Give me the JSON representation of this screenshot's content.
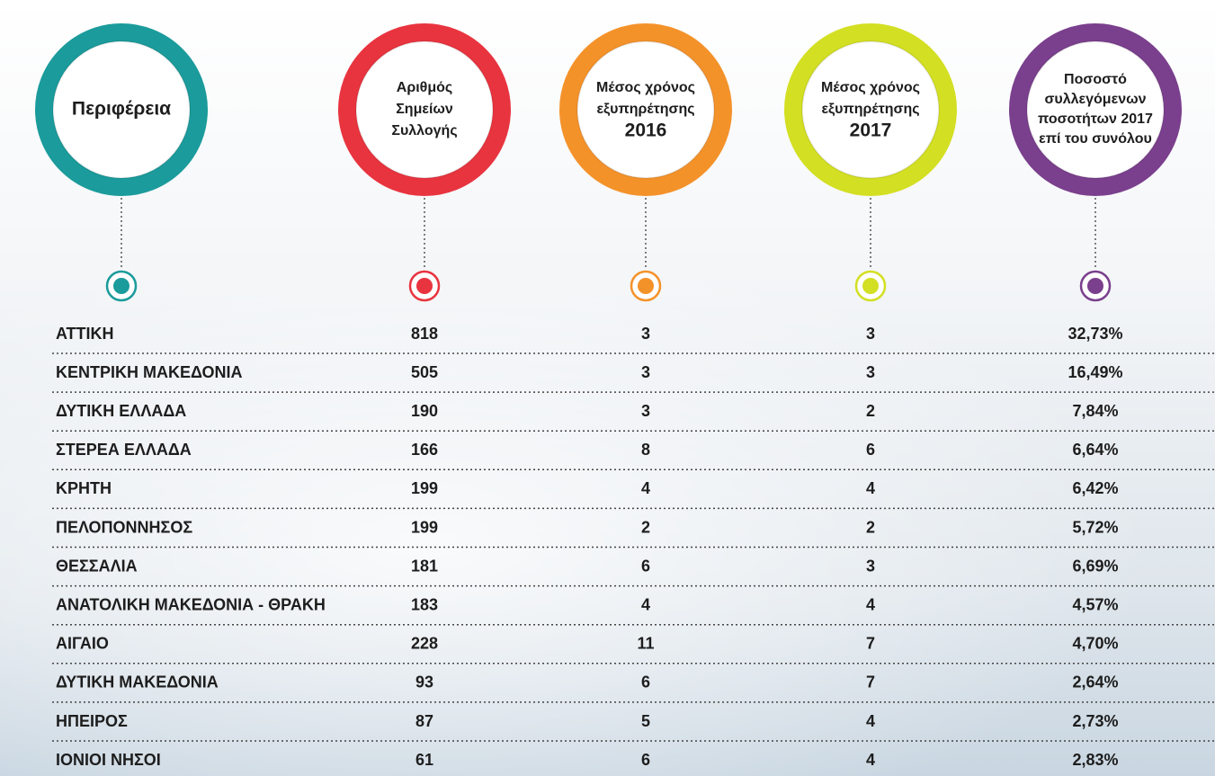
{
  "header": {
    "columns": [
      {
        "lines": [
          "Περιφέρεια"
        ]
      },
      {
        "lines": [
          "Αριθμός",
          "Σημείων",
          "Συλλογής"
        ]
      },
      {
        "lines": [
          "Μέσος χρόνος",
          "εξυπηρέτησης",
          "2016"
        ]
      },
      {
        "lines": [
          "Μέσος χρόνος",
          "εξυπηρέτησης",
          "2017"
        ]
      },
      {
        "lines": [
          "Ποσοστό",
          "συλλεγόμενων",
          "ποσοτήτων 2017",
          "επί του συνόλου"
        ]
      }
    ]
  },
  "table": {
    "rows": [
      [
        "ΑΤΤΙΚΗ",
        "818",
        "3",
        "3",
        "32,73%"
      ],
      [
        "ΚΕΝΤΡΙΚΗ ΜΑΚΕΔΟΝΙΑ",
        "505",
        "3",
        "3",
        "16,49%"
      ],
      [
        "ΔΥΤΙΚΗ ΕΛΛΑΔΑ",
        "190",
        "3",
        "2",
        "7,84%"
      ],
      [
        "ΣΤΕΡΕΑ ΕΛΛΑΔΑ",
        "166",
        "8",
        "6",
        "6,64%"
      ],
      [
        "ΚΡΗΤΗ",
        "199",
        "4",
        "4",
        "6,42%"
      ],
      [
        "ΠΕΛΟΠΟΝΝΗΣΟΣ",
        "199",
        "2",
        "2",
        "5,72%"
      ],
      [
        "ΘΕΣΣΑΛΙΑ",
        "181",
        "6",
        "3",
        "6,69%"
      ],
      [
        "ΑΝΑΤΟΛΙΚΗ ΜΑΚΕΔΟΝΙΑ - ΘΡΑΚΗ",
        "183",
        "4",
        "4",
        "4,57%"
      ],
      [
        "ΑΙΓΑΙΟ",
        "228",
        "11",
        "7",
        "4,70%"
      ],
      [
        "ΔΥΤΙΚΗ ΜΑΚΕΔΟΝΙΑ",
        "93",
        "6",
        "7",
        "2,64%"
      ],
      [
        "ΗΠΕΙΡΟΣ",
        "87",
        "5",
        "4",
        "2,73%"
      ],
      [
        "ΙΟΝΙΟΙ ΝΗΣΟΙ",
        "61",
        "6",
        "4",
        "2,83%"
      ]
    ]
  }
}
